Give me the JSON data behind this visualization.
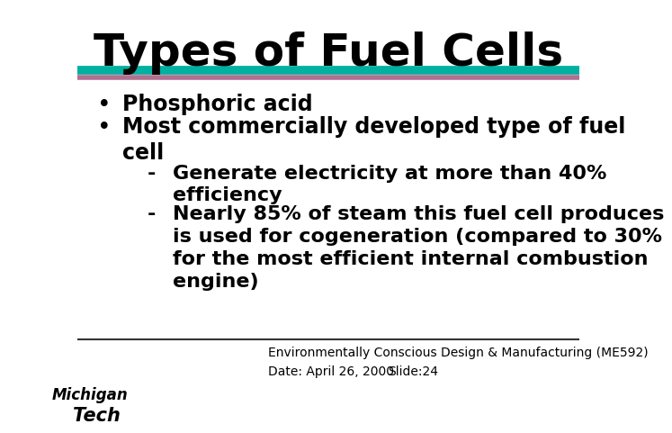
{
  "title": "Types of Fuel Cells",
  "title_fontsize": 36,
  "title_fontweight": "bold",
  "title_color": "#000000",
  "bg_color": "#ffffff",
  "line1_color": "#00b0a0",
  "line2_color": "#b07090",
  "bullet1": "Phosphoric acid",
  "bullet2": "Most commercially developed type of fuel\ncell",
  "sub1": "Generate electricity at more than 40%\nefficiency",
  "sub2": "Nearly 85% of steam this fuel cell produces\nis used for cogeneration (compared to 30%\nfor the most efficient internal combustion\nengine)",
  "footer_line": "Environmentally Conscious Design & Manufacturing (ME592)",
  "footer_date": "Date: April 26, 2000",
  "footer_slide": "Slide:24",
  "text_color": "#000000",
  "body_fontsize": 17,
  "sub_fontsize": 16,
  "footer_fontsize": 10
}
